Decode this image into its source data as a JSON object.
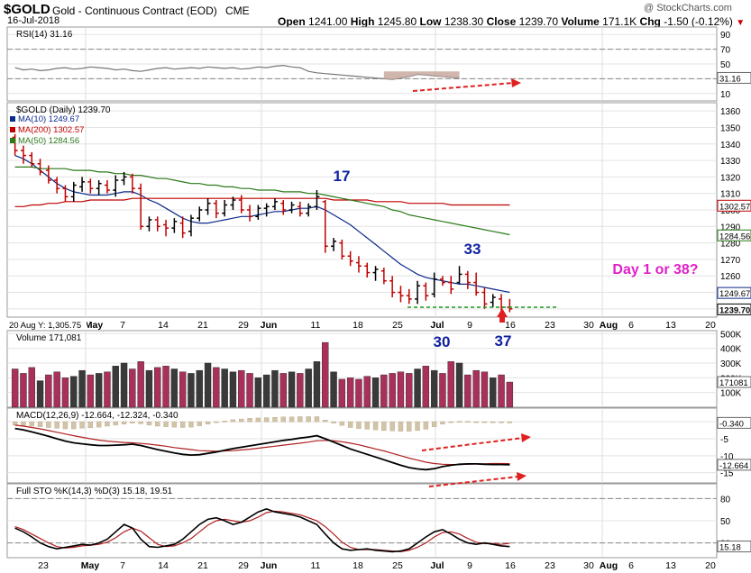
{
  "header": {
    "symbol": "$GOLD",
    "name": "Gold - Continuous Contract (EOD)",
    "exchange": "CME",
    "date": "16-Jul-2018",
    "watermark": "@ StockCharts.com",
    "open_label": "Open",
    "open": "1241.00",
    "high_label": "High",
    "high": "1245.80",
    "low_label": "Low",
    "low": "1238.30",
    "close_label": "Close",
    "close": "1239.70",
    "volume_label": "Volume",
    "volume": "171.1K",
    "chg_label": "Chg",
    "chg": "-1.50 (-0.12%)"
  },
  "chart_data": [
    {
      "type": "line",
      "panel": "rsi",
      "legend": "RSI(14) 31.16",
      "yticks": [
        "90",
        "70",
        "50",
        "30",
        "10"
      ],
      "ylim": [
        0,
        100
      ],
      "levels": [
        70,
        30
      ],
      "value_label": "31.16",
      "series": [
        {
          "name": "RSI(14)",
          "values": [
            45,
            42,
            43,
            41,
            42,
            44,
            45,
            43,
            44,
            46,
            45,
            44,
            42,
            43,
            41,
            40,
            42,
            44,
            45,
            43,
            44,
            45,
            44,
            46,
            45,
            44,
            45,
            43,
            44,
            46,
            45,
            47,
            48,
            46,
            45,
            40,
            38,
            37,
            36,
            35,
            34,
            33,
            32,
            31,
            30,
            29,
            31,
            33,
            36,
            35,
            34,
            33,
            32,
            31
          ]
        }
      ]
    },
    {
      "type": "candlestick",
      "panel": "price",
      "legend": "$GOLD (Daily) 1239.70",
      "yticks": [
        "1360",
        "1350",
        "1340",
        "1330",
        "1320",
        "1310",
        "1300",
        "1290",
        "1280",
        "1270",
        "1260",
        "1250",
        "1240"
      ],
      "ylim": [
        1235,
        1365
      ],
      "x_labels": [
        "May",
        "7",
        "14",
        "21",
        "29",
        "Jun",
        "11",
        "18",
        "25",
        "Jul",
        "9",
        "16",
        "23",
        "30",
        "Aug",
        "6",
        "13",
        "20"
      ],
      "bottom_note": "20 Aug Y: 1,305.75",
      "close_line": 1241,
      "ohlc": [
        [
          1344,
          1346,
          1333,
          1336
        ],
        [
          1336,
          1339,
          1328,
          1333
        ],
        [
          1333,
          1335,
          1326,
          1328
        ],
        [
          1328,
          1331,
          1321,
          1323
        ],
        [
          1324,
          1327,
          1316,
          1318
        ],
        [
          1318,
          1320,
          1310,
          1313
        ],
        [
          1313,
          1315,
          1305,
          1308
        ],
        [
          1308,
          1317,
          1305,
          1315
        ],
        [
          1314,
          1320,
          1311,
          1317
        ],
        [
          1317,
          1319,
          1310,
          1313
        ],
        [
          1313,
          1318,
          1309,
          1316
        ],
        [
          1315,
          1318,
          1310,
          1312
        ],
        [
          1312,
          1321,
          1308,
          1318
        ],
        [
          1318,
          1323,
          1315,
          1320
        ],
        [
          1320,
          1322,
          1310,
          1313
        ],
        [
          1313,
          1316,
          1288,
          1290
        ],
        [
          1290,
          1296,
          1287,
          1294
        ],
        [
          1294,
          1296,
          1287,
          1290
        ],
        [
          1291,
          1294,
          1284,
          1289
        ],
        [
          1289,
          1295,
          1286,
          1293
        ],
        [
          1292,
          1296,
          1283,
          1286
        ],
        [
          1287,
          1297,
          1284,
          1295
        ],
        [
          1295,
          1302,
          1293,
          1300
        ],
        [
          1300,
          1307,
          1297,
          1304
        ],
        [
          1304,
          1306,
          1295,
          1298
        ],
        [
          1298,
          1306,
          1296,
          1303
        ],
        [
          1303,
          1308,
          1300,
          1306
        ],
        [
          1306,
          1309,
          1298,
          1300
        ],
        [
          1300,
          1303,
          1293,
          1296
        ],
        [
          1296,
          1303,
          1294,
          1301
        ],
        [
          1301,
          1304,
          1296,
          1302
        ],
        [
          1302,
          1307,
          1300,
          1305
        ],
        [
          1304,
          1306,
          1297,
          1300
        ],
        [
          1300,
          1305,
          1298,
          1303
        ],
        [
          1302,
          1305,
          1296,
          1298
        ],
        [
          1298,
          1304,
          1296,
          1302
        ],
        [
          1302,
          1312,
          1300,
          1308
        ],
        [
          1305,
          1306,
          1274,
          1278
        ],
        [
          1278,
          1283,
          1275,
          1281
        ],
        [
          1280,
          1282,
          1270,
          1272
        ],
        [
          1272,
          1275,
          1266,
          1269
        ],
        [
          1268,
          1272,
          1262,
          1266
        ],
        [
          1266,
          1268,
          1259,
          1262
        ],
        [
          1262,
          1266,
          1257,
          1264
        ],
        [
          1263,
          1265,
          1255,
          1257
        ],
        [
          1257,
          1260,
          1247,
          1250
        ],
        [
          1250,
          1254,
          1244,
          1248
        ],
        [
          1248,
          1252,
          1243,
          1246
        ],
        [
          1246,
          1257,
          1243,
          1254
        ],
        [
          1254,
          1256,
          1245,
          1248
        ],
        [
          1249,
          1262,
          1247,
          1258
        ],
        [
          1258,
          1260,
          1254,
          1256
        ],
        [
          1256,
          1260,
          1249,
          1252
        ],
        [
          1256,
          1266,
          1255,
          1261
        ],
        [
          1261,
          1263,
          1252,
          1256
        ],
        [
          1256,
          1262,
          1248,
          1250
        ],
        [
          1250,
          1253,
          1240,
          1243
        ],
        [
          1244,
          1249,
          1241,
          1247
        ],
        [
          1246,
          1249,
          1238,
          1241
        ],
        [
          1241,
          1246,
          1238,
          1240
        ]
      ],
      "series": [
        {
          "name": "MA(10) 1249.67",
          "color": "#0b2a8a",
          "values": [
            1333,
            1331,
            1328,
            1324,
            1320,
            1316,
            1313,
            1311,
            1310,
            1309,
            1309,
            1309,
            1310,
            1311,
            1311,
            1309,
            1306,
            1304,
            1301,
            1298,
            1295,
            1293,
            1292,
            1292,
            1293,
            1294,
            1295,
            1296,
            1296,
            1297,
            1298,
            1299,
            1299,
            1300,
            1301,
            1301,
            1302,
            1300,
            1297,
            1294,
            1291,
            1287,
            1283,
            1279,
            1275,
            1271,
            1267,
            1264,
            1261,
            1259,
            1258,
            1257,
            1256,
            1255,
            1255,
            1254,
            1253,
            1252,
            1251,
            1250
          ]
        },
        {
          "name": "MA(200) 1302.57",
          "color": "#c00000",
          "values": [
            1302,
            1302,
            1303,
            1303,
            1304,
            1304,
            1305,
            1305,
            1305,
            1306,
            1306,
            1306,
            1306,
            1306,
            1307,
            1307,
            1307,
            1307,
            1307,
            1307,
            1307,
            1307,
            1307,
            1307,
            1307,
            1307,
            1307,
            1307,
            1307,
            1307,
            1307,
            1307,
            1307,
            1307,
            1307,
            1307,
            1307,
            1307,
            1306,
            1306,
            1306,
            1306,
            1306,
            1305,
            1305,
            1305,
            1305,
            1304,
            1304,
            1304,
            1304,
            1304,
            1303,
            1303,
            1303,
            1303,
            1303,
            1303,
            1303,
            1303
          ]
        },
        {
          "name": "MA(50) 1284.56",
          "color": "#2a7a1a",
          "values": [
            1326,
            1326,
            1326,
            1325,
            1325,
            1325,
            1325,
            1324,
            1324,
            1324,
            1323,
            1323,
            1322,
            1322,
            1321,
            1321,
            1320,
            1319,
            1319,
            1318,
            1317,
            1316,
            1316,
            1315,
            1315,
            1314,
            1314,
            1313,
            1313,
            1312,
            1312,
            1312,
            1311,
            1311,
            1311,
            1310,
            1310,
            1309,
            1308,
            1307,
            1306,
            1305,
            1304,
            1303,
            1302,
            1300,
            1299,
            1297,
            1296,
            1295,
            1294,
            1293,
            1292,
            1291,
            1290,
            1289,
            1288,
            1287,
            1286,
            1285
          ]
        }
      ],
      "value_labels": [
        "1302.57",
        "1284.56",
        "1249.67",
        "1239.70"
      ],
      "annotations": [
        "17",
        "33",
        "30",
        "37",
        "Day 1 or 38?"
      ]
    },
    {
      "type": "bar",
      "panel": "volume",
      "legend": "Volume 171,081",
      "yticks": [
        "500K",
        "400K",
        "300K",
        "200K",
        "100K"
      ],
      "ylim": [
        0,
        520
      ],
      "value_label": "171081",
      "values": [
        260,
        230,
        270,
        180,
        220,
        240,
        200,
        210,
        250,
        220,
        230,
        240,
        280,
        300,
        260,
        310,
        250,
        270,
        280,
        260,
        240,
        230,
        250,
        300,
        270,
        260,
        240,
        250,
        230,
        200,
        220,
        250,
        230,
        240,
        230,
        260,
        310,
        440,
        240,
        190,
        200,
        190,
        210,
        200,
        220,
        230,
        240,
        230,
        260,
        280,
        250,
        230,
        310,
        300,
        220,
        250,
        240,
        200,
        220,
        171
      ],
      "up": [
        false,
        false,
        false,
        true,
        false,
        false,
        false,
        true,
        true,
        false,
        true,
        false,
        true,
        true,
        false,
        false,
        true,
        false,
        false,
        true,
        false,
        true,
        true,
        true,
        false,
        true,
        true,
        false,
        false,
        true,
        true,
        true,
        false,
        true,
        false,
        true,
        true,
        false,
        true,
        false,
        false,
        false,
        false,
        true,
        false,
        false,
        false,
        false,
        true,
        false,
        true,
        false,
        false,
        true,
        false,
        false,
        false,
        true,
        false,
        false
      ]
    },
    {
      "type": "line",
      "panel": "macd",
      "legend": "MACD(12,26,9) -12.664, -12.324, -0.340",
      "yticks": [
        "0",
        "-5",
        "-10",
        "-15"
      ],
      "ylim": [
        -18,
        4
      ],
      "value_labels": [
        "-0.340",
        "-12.664"
      ],
      "series": [
        {
          "name": "MACD",
          "values": [
            -2,
            -2.4,
            -3,
            -3.6,
            -4.3,
            -5,
            -5.7,
            -6.2,
            -6.5,
            -6.8,
            -7,
            -7,
            -6.9,
            -6.8,
            -6.6,
            -7,
            -7.6,
            -8.2,
            -8.7,
            -9.2,
            -9.6,
            -9.8,
            -9.7,
            -9.3,
            -8.9,
            -8.4,
            -7.9,
            -7.5,
            -7.1,
            -6.7,
            -6.3,
            -5.9,
            -5.5,
            -5.2,
            -4.8,
            -4.5,
            -4.1,
            -5,
            -6,
            -7,
            -8,
            -8.8,
            -9.6,
            -10.4,
            -11.2,
            -12,
            -12.8,
            -13.5,
            -13.9,
            -14.1,
            -13.8,
            -13.2,
            -12.8,
            -12.5,
            -12.4,
            -12.4,
            -12.5,
            -12.6,
            -12.6,
            -12.66
          ]
        },
        {
          "name": "Signal",
          "values": [
            -1,
            -1.3,
            -1.7,
            -2.1,
            -2.6,
            -3.1,
            -3.6,
            -4.1,
            -4.6,
            -5,
            -5.4,
            -5.7,
            -5.9,
            -6.1,
            -6.2,
            -6.4,
            -6.6,
            -6.9,
            -7.2,
            -7.6,
            -7.9,
            -8.2,
            -8.5,
            -8.6,
            -8.7,
            -8.6,
            -8.5,
            -8.3,
            -8.1,
            -7.8,
            -7.5,
            -7.2,
            -6.9,
            -6.6,
            -6.3,
            -6,
            -5.6,
            -5.5,
            -5.6,
            -5.9,
            -6.3,
            -6.8,
            -7.4,
            -8,
            -8.6,
            -9.3,
            -10,
            -10.7,
            -11.3,
            -11.9,
            -12.3,
            -12.5,
            -12.6,
            -12.6,
            -12.5,
            -12.4,
            -12.4,
            -12.3,
            -12.3,
            -12.32
          ]
        }
      ],
      "histogram": [
        -1,
        -1.1,
        -1.3,
        -1.5,
        -1.7,
        -1.9,
        -2.1,
        -2.1,
        -1.9,
        -1.8,
        -1.6,
        -1.3,
        -1,
        -0.7,
        -0.4,
        -0.6,
        -1,
        -1.3,
        -1.5,
        -1.6,
        -1.7,
        -1.6,
        -1.2,
        -0.7,
        -0.2,
        0.2,
        0.6,
        0.8,
        1,
        1.1,
        1.2,
        1.3,
        1.4,
        1.4,
        1.5,
        1.5,
        1.5,
        0.5,
        -0.4,
        -1.1,
        -1.7,
        -2,
        -2.2,
        -2.4,
        -2.6,
        -2.7,
        -2.8,
        -2.8,
        -2.6,
        -2.2,
        -1.5,
        -0.7,
        -0.2,
        0.1,
        0.1,
        0,
        -0.1,
        -0.3,
        -0.3,
        -0.34
      ]
    },
    {
      "type": "line",
      "panel": "sto",
      "legend": "Full STO %K(14,3) %D(3) 15.18, 19.51",
      "yticks": [
        "80",
        "50",
        "20"
      ],
      "ylim": [
        0,
        100
      ],
      "levels": [
        80,
        20
      ],
      "value_label": "15.18",
      "x_labels": [
        "23",
        "May",
        "7",
        "14",
        "21",
        "29",
        "Jun",
        "11",
        "18",
        "25",
        "Jul",
        "9",
        "16",
        "23",
        "30",
        "Aug",
        "6",
        "13",
        "20"
      ],
      "series": [
        {
          "name": "%K",
          "values": [
            40,
            35,
            28,
            20,
            15,
            12,
            14,
            16,
            18,
            17,
            20,
            25,
            35,
            45,
            40,
            25,
            15,
            14,
            16,
            18,
            25,
            35,
            45,
            52,
            54,
            50,
            45,
            48,
            55,
            62,
            66,
            62,
            60,
            58,
            55,
            50,
            45,
            32,
            20,
            12,
            10,
            11,
            12,
            10,
            9,
            8,
            9,
            12,
            20,
            28,
            35,
            38,
            32,
            25,
            20,
            18,
            20,
            18,
            16,
            15
          ]
        },
        {
          "name": "%D",
          "values": [
            42,
            38,
            32,
            26,
            20,
            15,
            13,
            14,
            16,
            17,
            18,
            21,
            27,
            35,
            40,
            36,
            27,
            18,
            15,
            16,
            20,
            26,
            35,
            44,
            50,
            52,
            50,
            48,
            50,
            55,
            61,
            63,
            62,
            60,
            58,
            54,
            50,
            42,
            32,
            21,
            14,
            11,
            11,
            11,
            10,
            9,
            8,
            10,
            14,
            20,
            28,
            34,
            35,
            32,
            26,
            21,
            19,
            19,
            18,
            19.5
          ]
        }
      ]
    }
  ]
}
